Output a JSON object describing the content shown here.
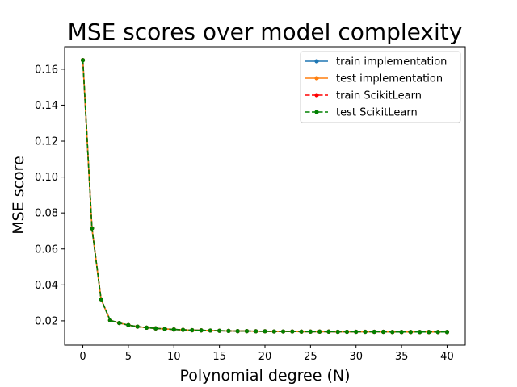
{
  "chart_data": {
    "type": "line",
    "title": "MSE scores over model complexity",
    "xlabel": "Polynomial degree (N)",
    "ylabel": "MSE score",
    "xlim": [
      -2,
      42
    ],
    "ylim": [
      0.0065,
      0.1725
    ],
    "xticks": [
      0,
      5,
      10,
      15,
      20,
      25,
      30,
      35,
      40
    ],
    "yticks": [
      0.02,
      0.04,
      0.06,
      0.08,
      0.1,
      0.12,
      0.14,
      0.16
    ],
    "ytick_labels": [
      "0.02",
      "0.04",
      "0.06",
      "0.08",
      "0.10",
      "0.12",
      "0.14",
      "0.16"
    ],
    "legend_position": "upper right",
    "grid": false,
    "x": [
      0,
      1,
      2,
      3,
      4,
      5,
      6,
      7,
      8,
      9,
      10,
      11,
      12,
      13,
      14,
      15,
      16,
      17,
      18,
      19,
      20,
      21,
      22,
      23,
      24,
      25,
      26,
      27,
      28,
      29,
      30,
      31,
      32,
      33,
      34,
      35,
      36,
      37,
      38,
      39,
      40
    ],
    "series": [
      {
        "name": "train implementation",
        "color": "#1f77b4",
        "style": "solid",
        "values": [
          0.165,
          0.0715,
          0.032,
          0.0203,
          0.0188,
          0.0176,
          0.0168,
          0.0162,
          0.0158,
          0.0155,
          0.0152,
          0.015,
          0.0148,
          0.0147,
          0.0146,
          0.0145,
          0.0144,
          0.0143,
          0.0143,
          0.0142,
          0.0142,
          0.0141,
          0.0141,
          0.0141,
          0.014,
          0.014,
          0.014,
          0.014,
          0.0139,
          0.0139,
          0.0139,
          0.0139,
          0.0139,
          0.0139,
          0.0138,
          0.0138,
          0.0138,
          0.0138,
          0.0138,
          0.0138,
          0.0138
        ]
      },
      {
        "name": "test implementation",
        "color": "#ff7f0e",
        "style": "solid",
        "values": [
          0.165,
          0.0715,
          0.032,
          0.0203,
          0.0188,
          0.0176,
          0.0168,
          0.0162,
          0.0158,
          0.0155,
          0.0152,
          0.015,
          0.0148,
          0.0147,
          0.0146,
          0.0145,
          0.0144,
          0.0143,
          0.0143,
          0.0142,
          0.0142,
          0.0141,
          0.0141,
          0.0141,
          0.014,
          0.014,
          0.014,
          0.014,
          0.0139,
          0.0139,
          0.0139,
          0.0139,
          0.0139,
          0.0139,
          0.0138,
          0.0138,
          0.0138,
          0.0138,
          0.0138,
          0.0138,
          0.0138
        ]
      },
      {
        "name": "train ScikitLearn",
        "color": "#ff0000",
        "style": "dashed",
        "values": [
          0.165,
          0.0715,
          0.032,
          0.0203,
          0.0188,
          0.0176,
          0.0168,
          0.0162,
          0.0158,
          0.0155,
          0.0152,
          0.015,
          0.0148,
          0.0147,
          0.0146,
          0.0145,
          0.0144,
          0.0143,
          0.0143,
          0.0142,
          0.0142,
          0.0141,
          0.0141,
          0.0141,
          0.014,
          0.014,
          0.014,
          0.014,
          0.0139,
          0.0139,
          0.0139,
          0.0139,
          0.0139,
          0.0139,
          0.0138,
          0.0138,
          0.0138,
          0.0138,
          0.0138,
          0.0138,
          0.0138
        ]
      },
      {
        "name": "test ScikitLearn",
        "color": "#008000",
        "style": "dashed",
        "values": [
          0.165,
          0.0715,
          0.032,
          0.0203,
          0.0188,
          0.0176,
          0.0168,
          0.0162,
          0.0158,
          0.0155,
          0.0152,
          0.015,
          0.0148,
          0.0147,
          0.0146,
          0.0145,
          0.0144,
          0.0143,
          0.0143,
          0.0142,
          0.0142,
          0.0141,
          0.0141,
          0.0141,
          0.014,
          0.014,
          0.014,
          0.014,
          0.0139,
          0.0139,
          0.0139,
          0.0139,
          0.0139,
          0.0139,
          0.0138,
          0.0138,
          0.0138,
          0.0138,
          0.0138,
          0.0138,
          0.0138
        ]
      }
    ]
  }
}
